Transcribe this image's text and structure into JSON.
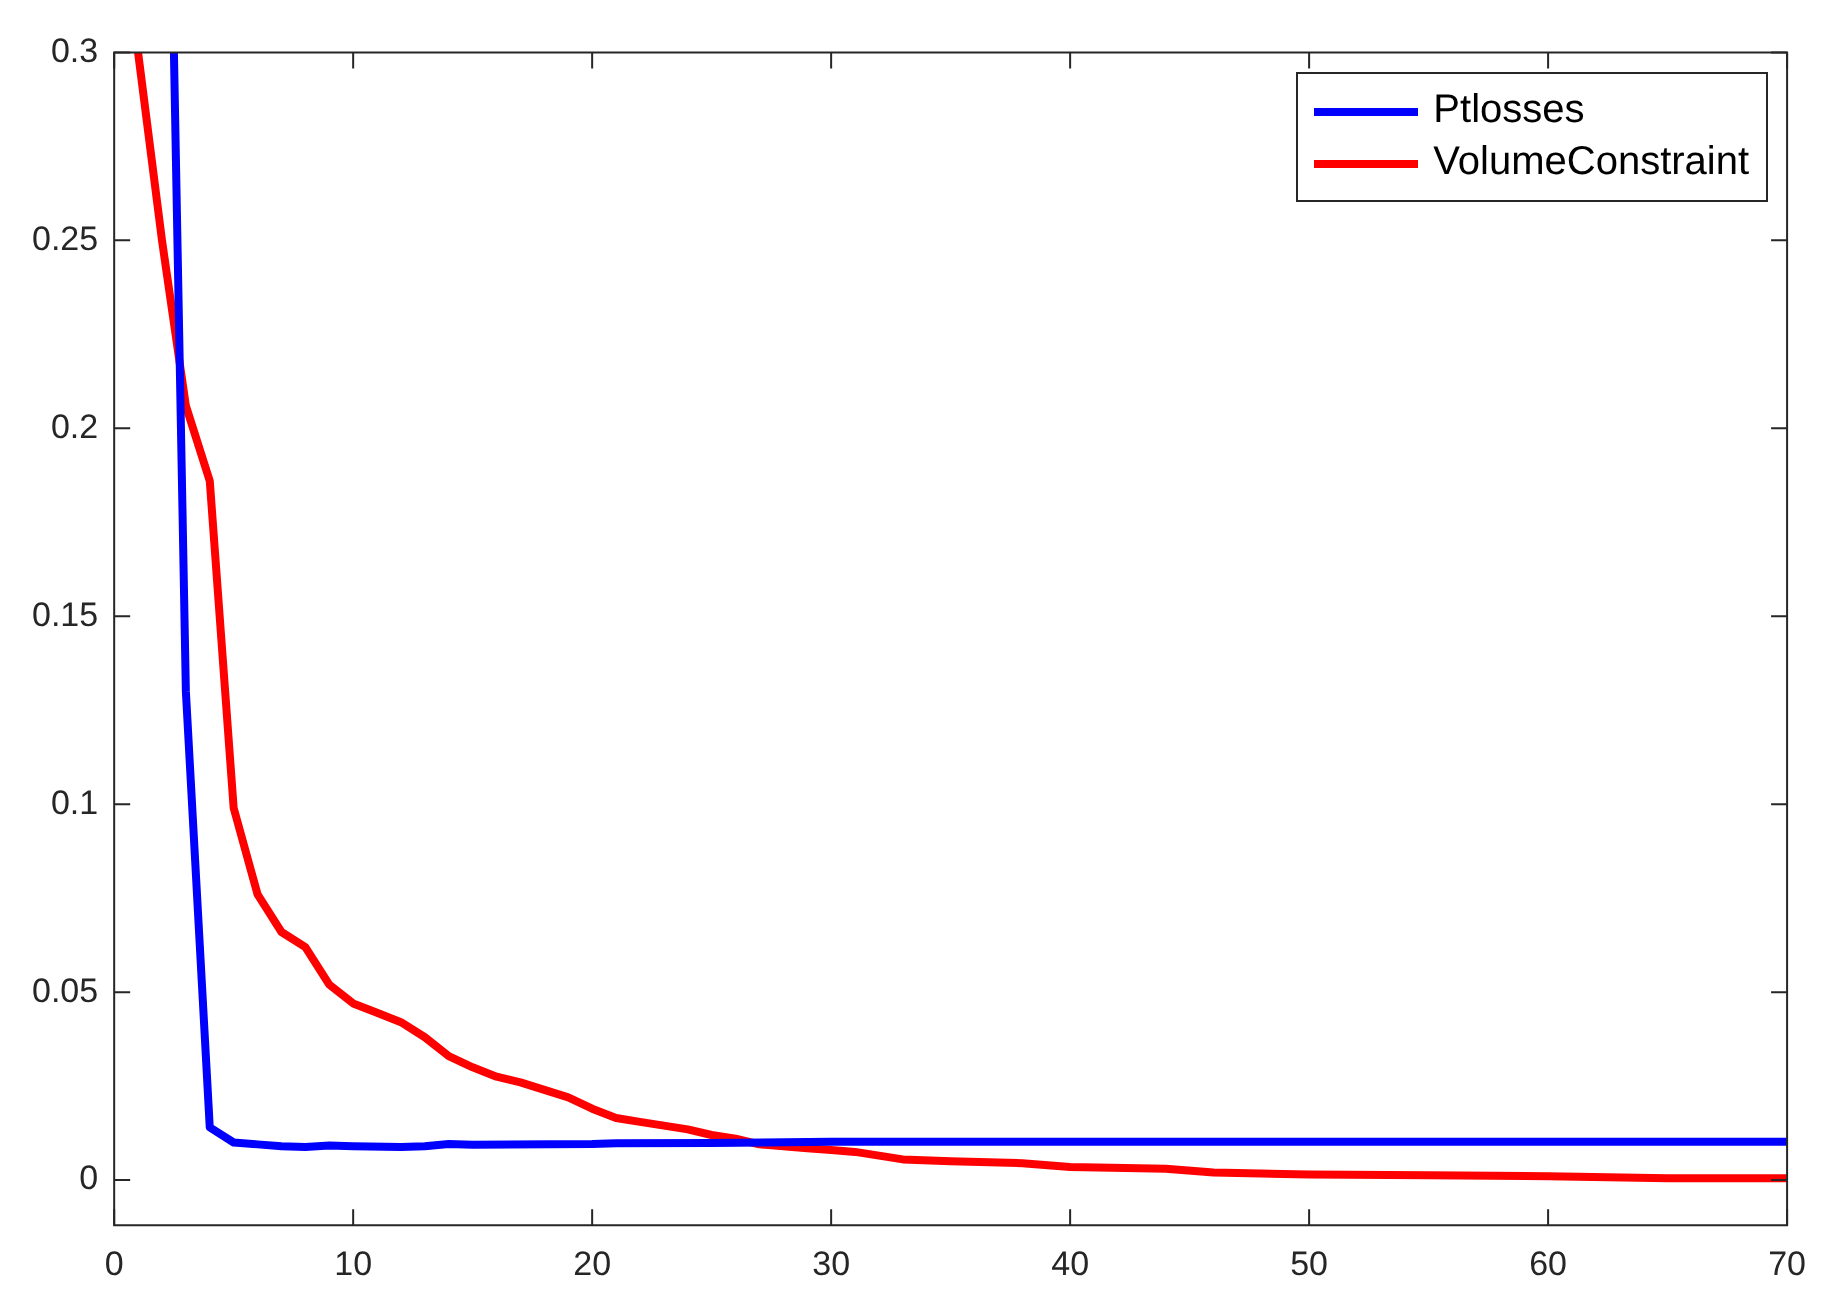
{
  "chart_data": {
    "type": "line",
    "xlim": [
      0,
      70
    ],
    "xticks": [
      0,
      10,
      20,
      30,
      40,
      50,
      60,
      70
    ],
    "ylim": [
      -0.012,
      0.3
    ],
    "yticks": [
      0,
      0.05,
      0.1,
      0.15,
      0.2,
      0.25,
      0.3
    ],
    "grid": false,
    "legend": "top right",
    "marker": "none",
    "line_style": "solid",
    "series": [
      {
        "name": "Ptlosses",
        "color": "#0000ff",
        "x": [
          2.5,
          3,
          4,
          5,
          6,
          7,
          8,
          9,
          10,
          12,
          13,
          14,
          15,
          20,
          21,
          25,
          30,
          70
        ],
        "values": [
          0.3,
          0.13,
          0.014,
          0.01,
          0.0095,
          0.009,
          0.0088,
          0.0092,
          0.009,
          0.0088,
          0.009,
          0.0096,
          0.0094,
          0.0096,
          0.0098,
          0.0099,
          0.0102,
          0.0102
        ]
      },
      {
        "name": "VolumeConstraint",
        "color": "#ff0000",
        "x": [
          1,
          2,
          3,
          4,
          5,
          6,
          7,
          8,
          9,
          10,
          11,
          12,
          13,
          14,
          15,
          16,
          17,
          18,
          19,
          20,
          21,
          22,
          23,
          24,
          25,
          26,
          27,
          28,
          29,
          30,
          31,
          32,
          33,
          35,
          38,
          40,
          44,
          46,
          50,
          55,
          60,
          65,
          70
        ],
        "values": [
          0.3,
          0.25,
          0.206,
          0.186,
          0.099,
          0.076,
          0.066,
          0.062,
          0.052,
          0.047,
          0.0445,
          0.042,
          0.038,
          0.033,
          0.03,
          0.0275,
          0.026,
          0.024,
          0.022,
          0.019,
          0.0165,
          0.0155,
          0.0145,
          0.0135,
          0.012,
          0.011,
          0.0095,
          0.009,
          0.0085,
          0.008,
          0.0075,
          0.0065,
          0.0055,
          0.005,
          0.0045,
          0.0035,
          0.003,
          0.002,
          0.0015,
          0.0013,
          0.001,
          0.0005,
          0.0005
        ]
      }
    ]
  }
}
